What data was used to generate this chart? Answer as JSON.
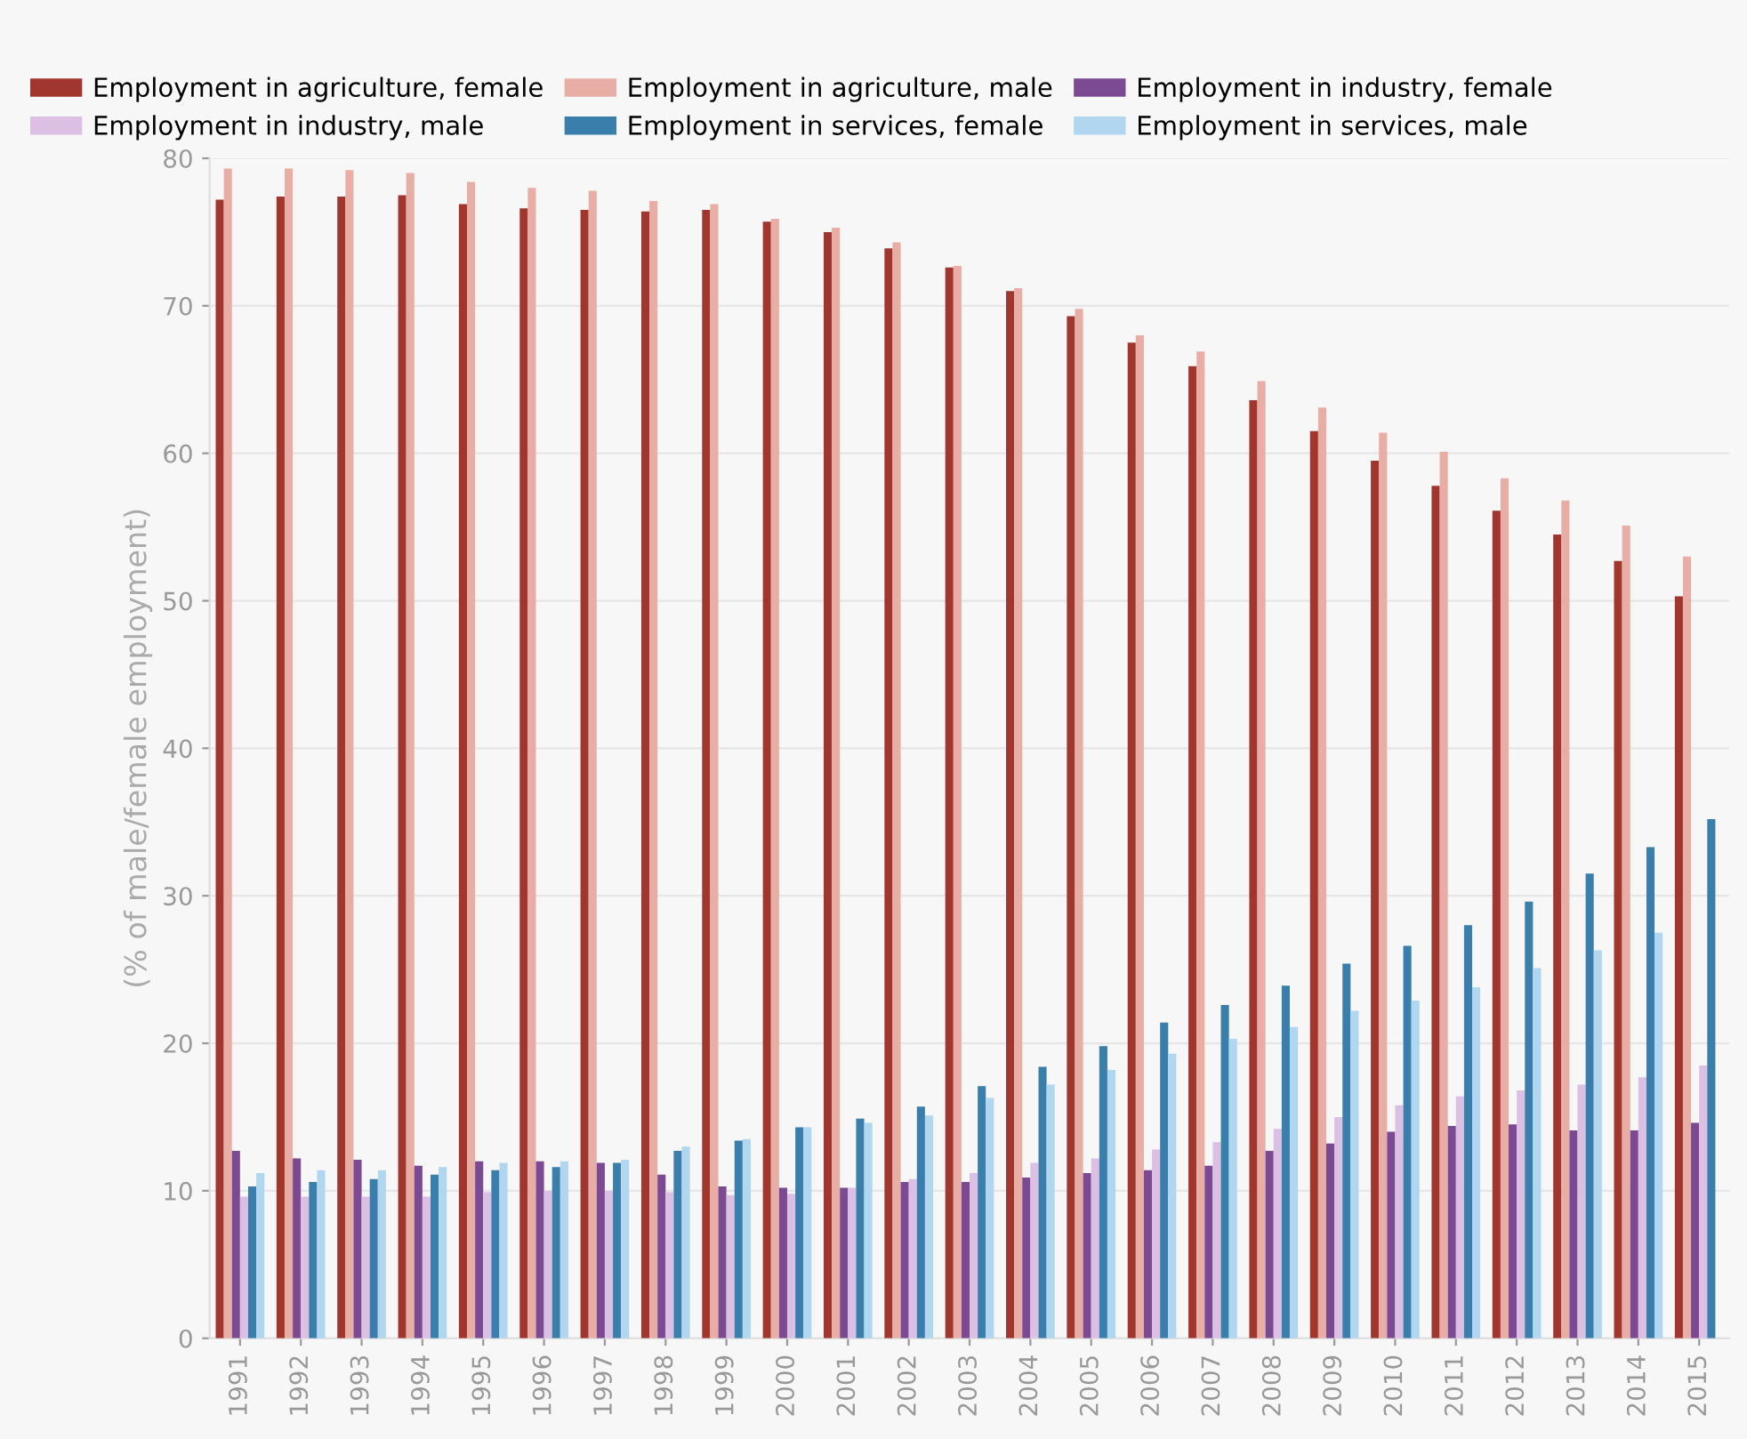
{
  "chart_data": {
    "type": "bar",
    "ylabel": "(% of male/female employment)",
    "categories": [
      "1991",
      "1992",
      "1993",
      "1994",
      "1995",
      "1996",
      "1997",
      "1998",
      "1999",
      "2000",
      "2001",
      "2002",
      "2003",
      "2004",
      "2005",
      "2006",
      "2007",
      "2008",
      "2009",
      "2010",
      "2011",
      "2012",
      "2013",
      "2014",
      "2015"
    ],
    "series": [
      {
        "name": "Employment in agriculture, female",
        "color": "#a0362e",
        "values": [
          77.2,
          77.4,
          77.4,
          77.5,
          76.9,
          76.6,
          76.5,
          76.4,
          76.5,
          75.7,
          75.0,
          73.9,
          72.6,
          71.0,
          69.3,
          67.5,
          65.9,
          63.6,
          61.5,
          59.5,
          57.8,
          56.1,
          54.5,
          52.7,
          50.3
        ]
      },
      {
        "name": "Employment in agriculture, male",
        "color": "#e8aea6",
        "values": [
          79.3,
          79.3,
          79.2,
          79.0,
          78.4,
          78.0,
          77.8,
          77.1,
          76.9,
          75.9,
          75.3,
          74.3,
          72.7,
          71.2,
          69.8,
          68.0,
          66.9,
          64.9,
          63.1,
          61.4,
          60.1,
          58.3,
          56.8,
          55.1,
          53.0
        ]
      },
      {
        "name": "Employment in industry, female",
        "color": "#7b4a93",
        "values": [
          12.7,
          12.2,
          12.1,
          11.7,
          12.0,
          12.0,
          11.9,
          11.1,
          10.3,
          10.2,
          10.2,
          10.6,
          10.6,
          10.9,
          11.2,
          11.4,
          11.7,
          12.7,
          13.2,
          14.0,
          14.4,
          14.5,
          14.1,
          14.1,
          14.6
        ]
      },
      {
        "name": "Employment in industry, male",
        "color": "#dcc0e3",
        "values": [
          9.6,
          9.6,
          9.6,
          9.6,
          9.9,
          10.0,
          10.0,
          9.9,
          9.7,
          9.8,
          10.2,
          10.8,
          11.2,
          11.9,
          12.2,
          12.8,
          13.3,
          14.2,
          15.0,
          15.8,
          16.4,
          16.8,
          17.2,
          17.7,
          18.5
        ]
      },
      {
        "name": "Employment in services, female",
        "color": "#3a7fac",
        "values": [
          10.3,
          10.6,
          10.8,
          11.1,
          11.4,
          11.6,
          11.9,
          12.7,
          13.4,
          14.3,
          14.9,
          15.7,
          17.1,
          18.4,
          19.8,
          21.4,
          22.6,
          23.9,
          25.4,
          26.6,
          28.0,
          29.6,
          31.5,
          33.3,
          35.2
        ]
      },
      {
        "name": "Employment in services, male",
        "color": "#b1d6f0",
        "values": [
          11.2,
          11.4,
          11.4,
          11.6,
          11.9,
          12.0,
          12.1,
          13.0,
          13.5,
          14.3,
          14.6,
          15.1,
          16.3,
          17.2,
          18.2,
          19.3,
          20.3,
          21.1,
          22.2,
          22.9,
          23.8,
          25.1,
          26.3,
          27.5,
          null
        ]
      }
    ],
    "ylim": [
      0,
      80
    ],
    "yticks": [
      0,
      10,
      20,
      30,
      40,
      50,
      60,
      70,
      80
    ],
    "grid": "y",
    "legend": "top"
  }
}
